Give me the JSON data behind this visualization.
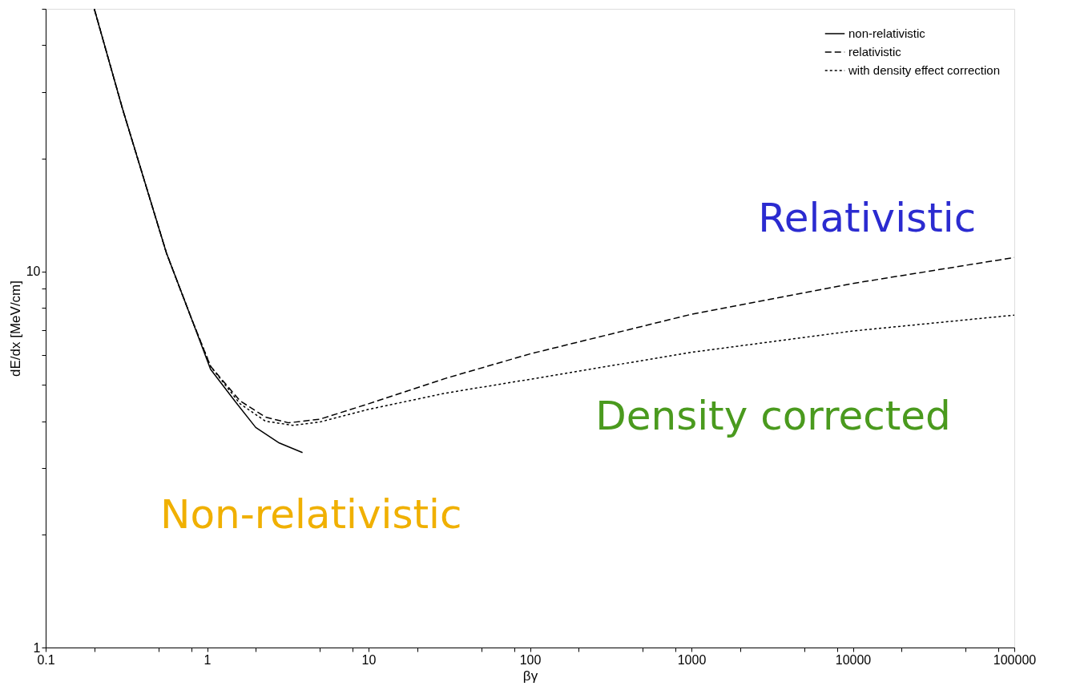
{
  "chart_data": {
    "type": "line",
    "xlabel": "βγ",
    "ylabel": "dE/dx [MeV/cm]",
    "log": "xy",
    "xlim": [
      0.1,
      100000
    ],
    "ylim": [
      1,
      50
    ],
    "xticks": [
      0.1,
      {
        "value": 0.2,
        "label": null
      },
      {
        "value": 0.5,
        "label": null
      },
      {
        "value": 0.8,
        "label": null
      },
      1,
      {
        "value": 2,
        "label": null
      },
      {
        "value": 5,
        "label": null
      },
      {
        "value": 8,
        "label": null
      },
      10,
      {
        "value": 20,
        "label": null
      },
      {
        "value": 50,
        "label": null
      },
      {
        "value": 80,
        "label": null
      },
      100,
      {
        "value": 200,
        "label": null
      },
      {
        "value": 500,
        "label": null
      },
      {
        "value": 800,
        "label": null
      },
      1000,
      {
        "value": 2000,
        "label": null
      },
      {
        "value": 5000,
        "label": null
      },
      {
        "value": 8000,
        "label": null
      },
      10000,
      {
        "value": 20000,
        "label": null
      },
      {
        "value": 50000,
        "label": null
      },
      {
        "value": 80000,
        "label": null
      },
      100000
    ],
    "yticks": [
      1,
      {
        "value": 2,
        "label": null
      },
      {
        "value": 3,
        "label": null
      },
      {
        "value": 4,
        "label": null
      },
      {
        "value": 5,
        "label": null
      },
      {
        "value": 6,
        "label": null
      },
      {
        "value": 7,
        "label": null
      },
      {
        "value": 8,
        "label": null
      },
      {
        "value": 9,
        "label": null
      },
      10,
      {
        "value": 20,
        "label": null
      },
      {
        "value": 30,
        "label": null
      },
      {
        "value": 40,
        "label": null
      },
      {
        "value": 50,
        "label": null
      }
    ],
    "grid": false,
    "legend": "top right",
    "marker": "none",
    "series": [
      {
        "name": "non-relativistic",
        "color": "#000000",
        "line_style": "solid",
        "x": [
          0.2,
          0.3,
          0.56,
          0.8,
          1.05,
          1.5,
          2.0,
          2.8,
          3.9
        ],
        "values": [
          50,
          27,
          11.2,
          7.5,
          5.5,
          4.5,
          3.85,
          3.5,
          3.3
        ]
      },
      {
        "name": "relativistic",
        "color": "#000000",
        "line_style": "dashed",
        "x": [
          0.2,
          0.3,
          0.56,
          0.8,
          1.05,
          1.6,
          2.3,
          3.2,
          5,
          10,
          30,
          100,
          1000,
          10000,
          100000
        ],
        "values": [
          50,
          27,
          11.2,
          7.5,
          5.6,
          4.53,
          4.1,
          3.96,
          4.05,
          4.45,
          5.2,
          6.04,
          7.7,
          9.3,
          10.9
        ]
      },
      {
        "name": "with density effect correction",
        "color": "#000000",
        "line_style": "dotted",
        "x": [
          0.2,
          0.3,
          0.56,
          0.8,
          1.05,
          1.6,
          2.3,
          3.4,
          5,
          10,
          30,
          100,
          1000,
          10000,
          100000
        ],
        "values": [
          50,
          27,
          11.2,
          7.5,
          5.6,
          4.45,
          4.0,
          3.9,
          3.98,
          4.3,
          4.75,
          5.17,
          6.1,
          6.95,
          7.66
        ]
      }
    ],
    "annotations": [
      "Relativistic",
      "Density corrected",
      "Non-relativistic"
    ]
  }
}
